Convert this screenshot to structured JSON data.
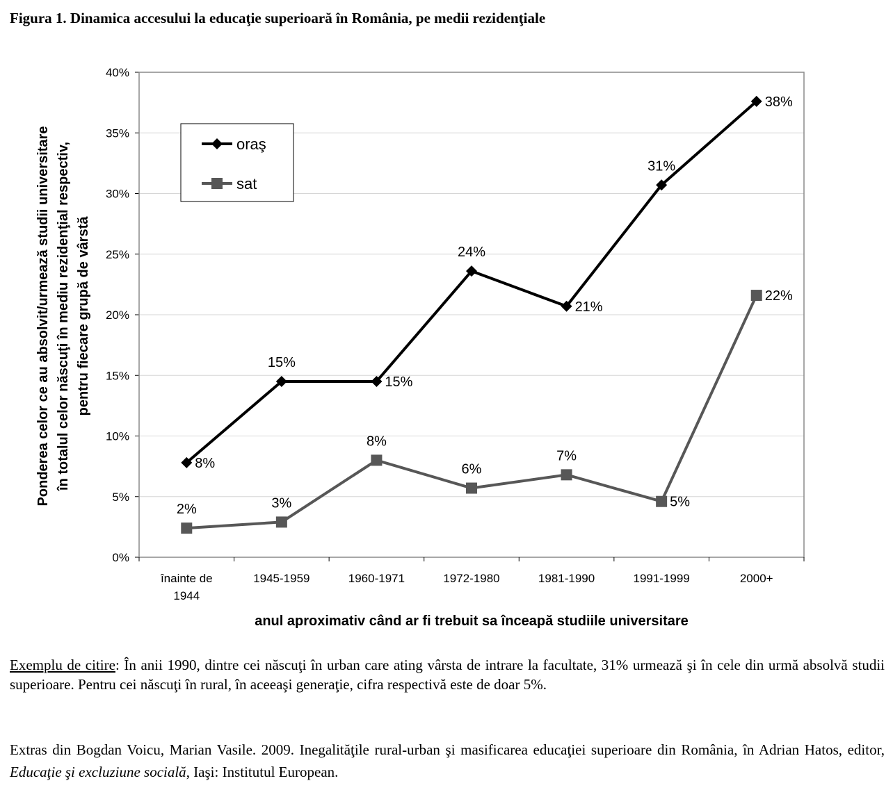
{
  "figure_title": "Figura 1. Dinamica accesului la educaţie superioară în România, pe medii rezidenţiale",
  "chart_data": {
    "type": "line",
    "categories": [
      "înainte de 1944",
      "1945-1959",
      "1960-1971",
      "1972-1980",
      "1981-1990",
      "1991-1999",
      "2000+"
    ],
    "category_lines": [
      [
        "înainte de",
        "1944"
      ],
      [
        "1945-1959"
      ],
      [
        "1960-1971"
      ],
      [
        "1972-1980"
      ],
      [
        "1981-1990"
      ],
      [
        "1991-1999"
      ],
      [
        "2000+"
      ]
    ],
    "series": [
      {
        "name": "oraş",
        "marker": "diamond",
        "color": "#000000",
        "values": [
          7.8,
          14.5,
          14.5,
          23.6,
          20.7,
          30.7,
          37.6
        ],
        "labels": [
          "8%",
          "15%",
          "15%",
          "24%",
          "21%",
          "31%",
          "38%"
        ],
        "label_positions": [
          "right",
          "above",
          "right",
          "above",
          "right",
          "above",
          "right"
        ]
      },
      {
        "name": "sat",
        "marker": "square",
        "color": "#575757",
        "values": [
          2.4,
          2.9,
          8.0,
          5.7,
          6.8,
          4.6,
          21.6
        ],
        "labels": [
          "2%",
          "3%",
          "8%",
          "6%",
          "7%",
          "5%",
          "22%"
        ],
        "label_positions": [
          "above",
          "above",
          "above",
          "above",
          "above",
          "right",
          "right"
        ]
      }
    ],
    "y_ticks": [
      0,
      5,
      10,
      15,
      20,
      25,
      30,
      35,
      40
    ],
    "y_tick_labels": [
      "0%",
      "5%",
      "10%",
      "15%",
      "20%",
      "25%",
      "30%",
      "35%",
      "40%"
    ],
    "ylim": [
      0,
      40
    ],
    "grid": true,
    "legend": "top-left",
    "xlabel": "anul aproximativ când ar fi trebuit sa înceapă studiile universitare",
    "ylabel_lines": [
      "Ponderea celor ce au absolvit/urmează studii universitare",
      "în totalul celor născuţi în mediu rezidenţial respectiv,",
      "pentru fiecare grupă de vârstă"
    ]
  },
  "caption": {
    "reading_example_label": "Exemplu de citire",
    "reading_example_text": ": În anii 1990, dintre cei născuţi în urban care ating vârsta de intrare la facultate, 31% urmează şi în cele din urmă absolvă studii superioare. Pentru cei născuţi în rural, în aceeaşi generaţie, cifra respectivă este de doar 5%.",
    "source_prefix": "Extras din Bogdan Voicu, Marian Vasile. 2009. Inegalităţile rural-urban şi masificarea educaţiei superioare din România, în Adrian Hatos, editor, ",
    "source_book": "Educaţie şi excluziune socială",
    "source_suffix": ", Iaşi: Institutul European."
  }
}
